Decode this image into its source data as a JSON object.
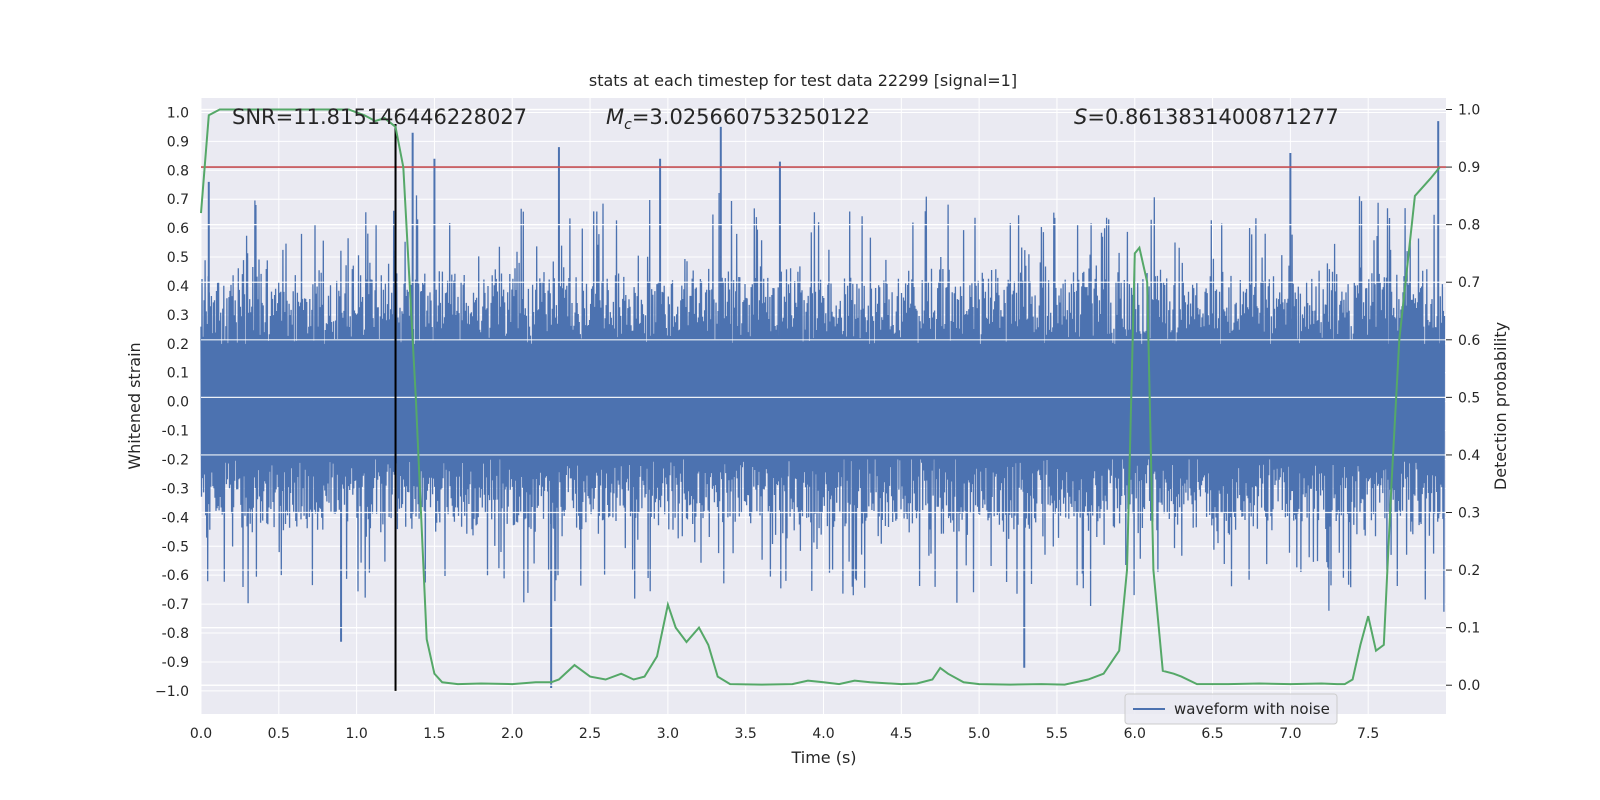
{
  "chart_data": {
    "type": "line",
    "title": "stats at each timestep for test data 22299 [signal=1]",
    "xlabel": "Time (s)",
    "ylabel_left": "Whitened strain",
    "ylabel_right": "Detection probability",
    "xlim": [
      0.0,
      8.0
    ],
    "ylim_left": [
      -1.08,
      1.05
    ],
    "ylim_right": [
      -0.05,
      1.02
    ],
    "x_ticks": [
      "0.0",
      "0.5",
      "1.0",
      "1.5",
      "2.0",
      "2.5",
      "3.0",
      "3.5",
      "4.0",
      "4.5",
      "5.0",
      "5.5",
      "6.0",
      "6.5",
      "7.0",
      "7.5"
    ],
    "y_left_ticks": [
      "1.0",
      "0.9",
      "0.8",
      "0.7",
      "0.6",
      "0.5",
      "0.4",
      "0.3",
      "0.2",
      "0.1",
      "0.0",
      "-0.1",
      "-0.2",
      "-0.3",
      "-0.4",
      "-0.5",
      "-0.6",
      "-0.7",
      "-0.8",
      "-0.9",
      "−1.0"
    ],
    "y_right_ticks": [
      "1.0",
      "0.9",
      "0.8",
      "0.7",
      "0.6",
      "0.5",
      "0.4",
      "0.3",
      "0.2",
      "0.1",
      "0.0"
    ],
    "grid": true,
    "legend": {
      "location": "lower right",
      "entries": [
        "waveform with noise"
      ]
    },
    "annotations": {
      "snr": "SNR=11.815146446228027",
      "mc_symbol": "M",
      "mc_sub": "c",
      "mc_value": "=3.025660753250122",
      "s_symbol": "S",
      "s_value": "=0.8613831400871277"
    },
    "threshold": {
      "probability": 0.9,
      "color": "#c44e52"
    },
    "marker_time": 1.25,
    "colors": {
      "waveform": "#4c72b0",
      "probability": "#55a868",
      "threshold": "#c44e52",
      "marker": "#000000",
      "plot_bg": "#eaeaf2",
      "grid": "#ffffff"
    },
    "series": [
      {
        "name": "waveform with noise",
        "axis": "left",
        "note": "dense noise band, typical amplitude ±0.4",
        "spikes": [
          {
            "t": 0.05,
            "v": 0.76
          },
          {
            "t": 0.9,
            "v": -0.83
          },
          {
            "t": 1.25,
            "v": 0.96
          },
          {
            "t": 1.36,
            "v": 0.93
          },
          {
            "t": 1.5,
            "v": 0.84
          },
          {
            "t": 2.25,
            "v": -0.99
          },
          {
            "t": 2.3,
            "v": 0.88
          },
          {
            "t": 2.95,
            "v": 0.84
          },
          {
            "t": 3.34,
            "v": 0.95
          },
          {
            "t": 3.72,
            "v": 0.83
          },
          {
            "t": 5.29,
            "v": -0.92
          },
          {
            "t": 7.0,
            "v": 0.86
          },
          {
            "t": 7.95,
            "v": 0.97
          }
        ]
      },
      {
        "name": "detection probability",
        "axis": "right",
        "t": [
          0.0,
          0.05,
          0.12,
          0.2,
          0.4,
          0.6,
          0.8,
          0.95,
          1.0,
          1.05,
          1.12,
          1.18,
          1.25,
          1.3,
          1.38,
          1.45,
          1.5,
          1.55,
          1.65,
          1.8,
          2.0,
          2.15,
          2.25,
          2.3,
          2.4,
          2.5,
          2.6,
          2.7,
          2.78,
          2.85,
          2.93,
          3.0,
          3.05,
          3.12,
          3.2,
          3.26,
          3.32,
          3.4,
          3.6,
          3.8,
          3.9,
          4.0,
          4.1,
          4.2,
          4.3,
          4.5,
          4.6,
          4.7,
          4.75,
          4.8,
          4.9,
          5.0,
          5.2,
          5.4,
          5.55,
          5.7,
          5.8,
          5.85,
          5.9,
          5.95,
          6.0,
          6.03,
          6.08,
          6.12,
          6.18,
          6.25,
          6.3,
          6.4,
          6.6,
          6.8,
          7.0,
          7.2,
          7.3,
          7.35,
          7.4,
          7.45,
          7.5,
          7.55,
          7.6,
          7.65,
          7.7,
          7.8,
          7.9,
          7.96
        ],
        "p": [
          0.82,
          0.99,
          1.0,
          1.0,
          1.0,
          1.0,
          1.0,
          1.0,
          0.995,
          0.99,
          0.98,
          0.985,
          0.97,
          0.9,
          0.5,
          0.08,
          0.02,
          0.005,
          0.002,
          0.003,
          0.002,
          0.005,
          0.005,
          0.01,
          0.035,
          0.015,
          0.01,
          0.02,
          0.01,
          0.015,
          0.05,
          0.14,
          0.1,
          0.075,
          0.1,
          0.07,
          0.015,
          0.002,
          0.001,
          0.002,
          0.008,
          0.005,
          0.002,
          0.008,
          0.005,
          0.002,
          0.003,
          0.01,
          0.03,
          0.02,
          0.005,
          0.002,
          0.001,
          0.002,
          0.001,
          0.01,
          0.02,
          0.04,
          0.06,
          0.2,
          0.75,
          0.76,
          0.7,
          0.2,
          0.025,
          0.02,
          0.015,
          0.002,
          0.002,
          0.003,
          0.002,
          0.003,
          0.002,
          0.002,
          0.01,
          0.07,
          0.12,
          0.06,
          0.07,
          0.35,
          0.6,
          0.85,
          0.88,
          0.9
        ]
      }
    ]
  }
}
